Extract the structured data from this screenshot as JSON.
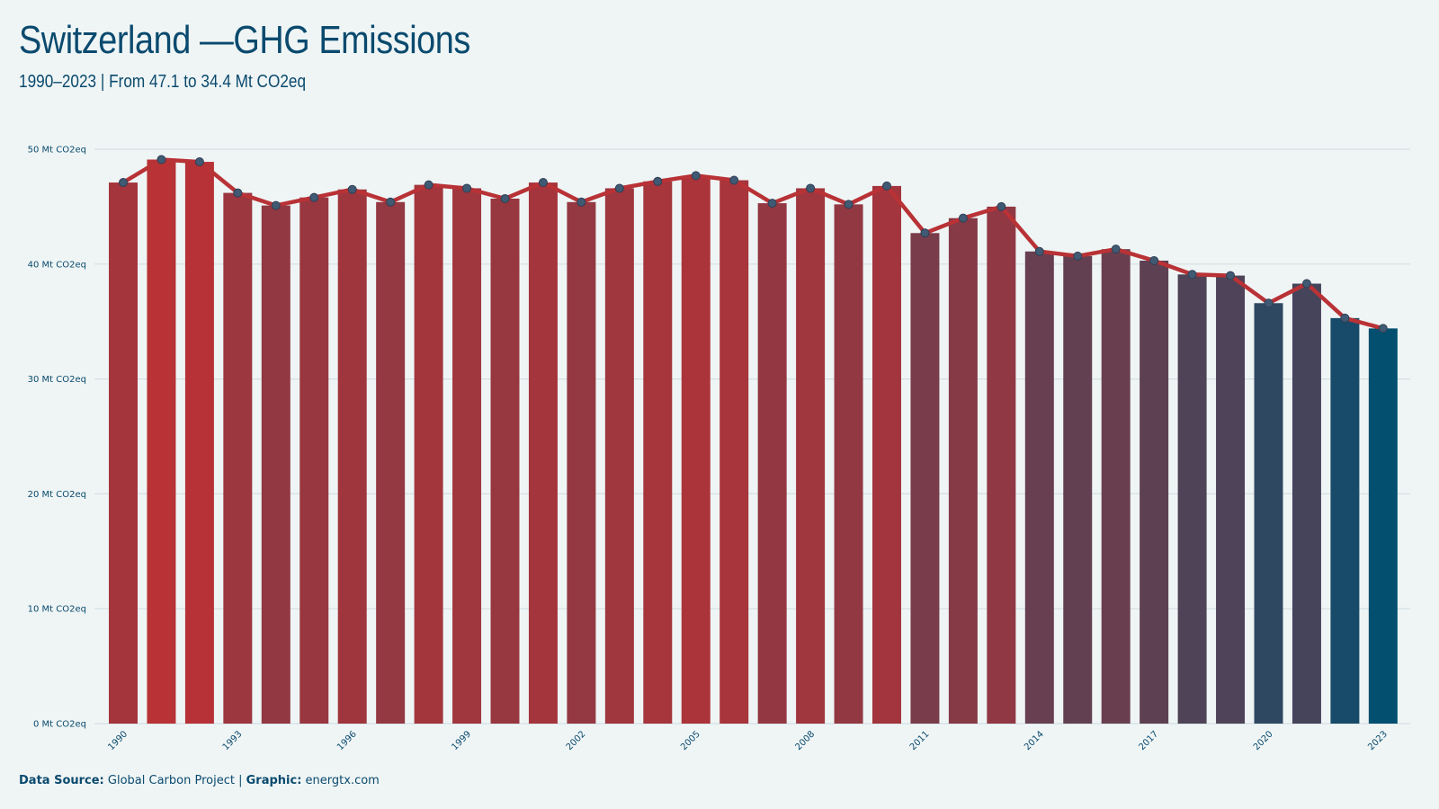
{
  "header": {
    "title": "Switzerland —GHG Emissions",
    "subtitle": "1990–2023 | From 47.1 to 34.4 Mt CO2eq"
  },
  "footer": {
    "source_label": "Data Source:",
    "source_value": "Global Carbon Project",
    "separator": "|",
    "graphic_label": "Graphic:",
    "graphic_value": "energtx.com"
  },
  "colors": {
    "background": "#eff5f5",
    "line": "#b83236",
    "high": "#b83236",
    "low": "#024f70",
    "point": "#415a73",
    "text": "#0a4a6e",
    "grid": "#d4dfe3"
  },
  "chart_data": {
    "type": "bar",
    "title": "",
    "xlabel": "",
    "ylabel": "",
    "unit_suffix": " Mt CO2eq",
    "ylim": [
      0,
      50
    ],
    "yticks": [
      0,
      10,
      20,
      30,
      40,
      50
    ],
    "ytick_labels": [
      "0 Mt CO2eq",
      "10 Mt CO2eq",
      "20 Mt CO2eq",
      "30 Mt CO2eq",
      "40 Mt CO2eq",
      "50 Mt CO2eq"
    ],
    "x": [
      1990,
      1991,
      1992,
      1993,
      1994,
      1995,
      1996,
      1997,
      1998,
      1999,
      2000,
      2001,
      2002,
      2003,
      2004,
      2005,
      2006,
      2007,
      2008,
      2009,
      2010,
      2011,
      2012,
      2013,
      2014,
      2015,
      2016,
      2017,
      2018,
      2019,
      2020,
      2021,
      2022,
      2023
    ],
    "xtick_labels": [
      "1990",
      "1993",
      "1996",
      "1999",
      "2002",
      "2005",
      "2008",
      "2011",
      "2014",
      "2017",
      "2020",
      "2023"
    ],
    "values": [
      47.1,
      49.1,
      48.9,
      46.2,
      45.1,
      45.8,
      46.5,
      45.4,
      46.9,
      46.6,
      45.7,
      47.1,
      45.4,
      46.6,
      47.2,
      47.7,
      47.3,
      45.3,
      46.6,
      45.2,
      46.8,
      42.7,
      44.0,
      45.0,
      41.1,
      40.7,
      41.3,
      40.3,
      39.1,
      39.0,
      36.6,
      38.3,
      35.3,
      34.4
    ],
    "grid": true,
    "overlay": "line with points"
  }
}
